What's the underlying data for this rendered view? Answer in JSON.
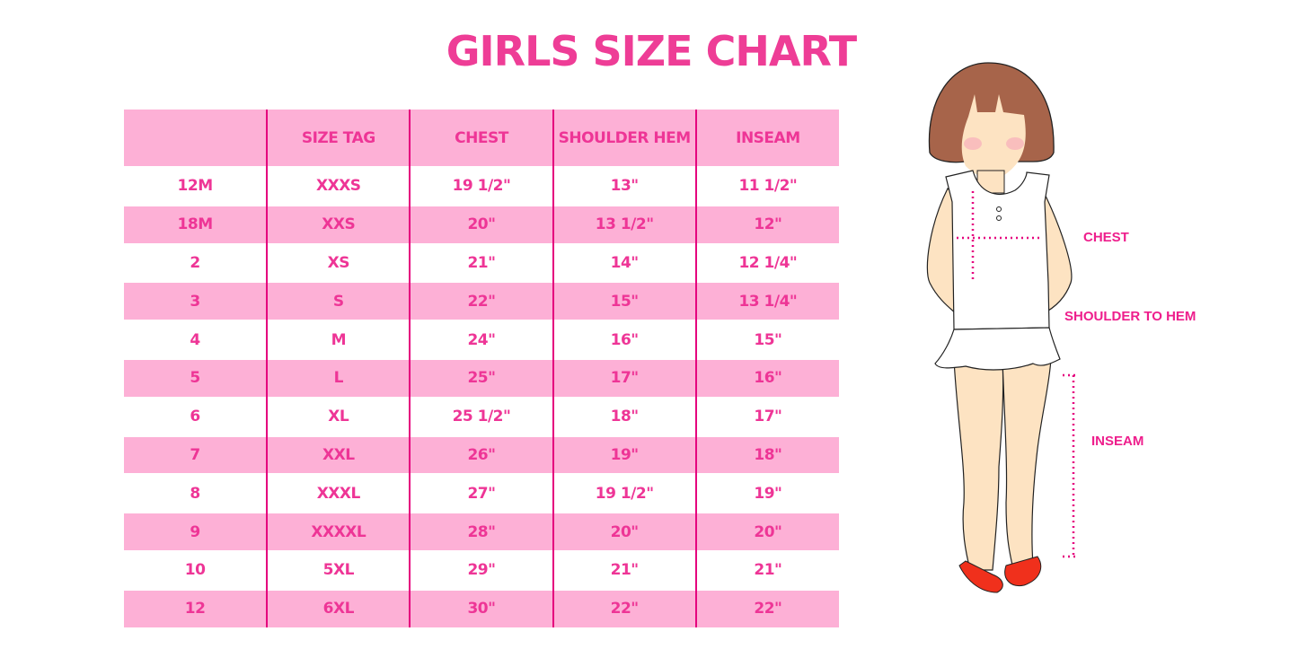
{
  "title": "GIRLS SIZE CHART",
  "table": {
    "headers": [
      "",
      "SIZE TAG",
      "CHEST",
      "SHOULDER HEM",
      "INSEAM"
    ],
    "rows": [
      [
        "12M",
        "XXXS",
        "19 1/2\"",
        "13\"",
        "11 1/2\""
      ],
      [
        "18M",
        "XXS",
        "20\"",
        "13 1/2\"",
        "12\""
      ],
      [
        "2",
        "XS",
        "21\"",
        "14\"",
        "12 1/4\""
      ],
      [
        "3",
        "S",
        "22\"",
        "15\"",
        "13 1/4\""
      ],
      [
        "4",
        "M",
        "24\"",
        "16\"",
        "15\""
      ],
      [
        "5",
        "L",
        "25\"",
        "17\"",
        "16\""
      ],
      [
        "6",
        "XL",
        "25 1/2\"",
        "18\"",
        "17\""
      ],
      [
        "7",
        "XXL",
        "26\"",
        "19\"",
        "18\""
      ],
      [
        "8",
        "XXXL",
        "27\"",
        "19 1/2\"",
        "19\""
      ],
      [
        "9",
        "XXXXL",
        "28\"",
        "20\"",
        "20\""
      ],
      [
        "10",
        "5XL",
        "29\"",
        "21\"",
        "21\""
      ],
      [
        "12",
        "6XL",
        "30\"",
        "22\"",
        "22\""
      ]
    ]
  },
  "illustration": {
    "labels": {
      "chest": "CHEST",
      "shoulder_to_hem": "SHOULDER TO HEM",
      "inseam": "INSEAM"
    }
  },
  "colors": {
    "accent": "#ee3596",
    "row_pink": "#fdb0d6",
    "divider": "#e5007e"
  }
}
